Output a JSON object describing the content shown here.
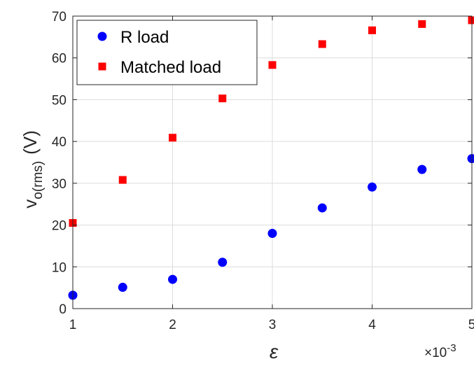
{
  "chart_data": {
    "type": "scatter",
    "xlabel": "ε",
    "ylabel_main": "v",
    "ylabel_sub": "o(rms)",
    "ylabel_unit": "(V)",
    "x_multiplier_base": "×10",
    "x_multiplier_exp": "-3",
    "xlim": [
      1,
      5
    ],
    "ylim": [
      0,
      70
    ],
    "xticks": [
      1,
      2,
      3,
      4,
      5
    ],
    "yticks": [
      0,
      10,
      20,
      30,
      40,
      50,
      60,
      70
    ],
    "grid": true,
    "legend_position": "top-left",
    "x": [
      1,
      1.5,
      2,
      2.5,
      3,
      3.5,
      4,
      4.5,
      5
    ],
    "series": [
      {
        "name": "R load",
        "marker": "circle",
        "color": "#0000ff",
        "values": [
          3.2,
          5.1,
          7.0,
          11.1,
          18.0,
          24.1,
          29.1,
          33.3,
          35.9
        ]
      },
      {
        "name": "Matched load",
        "marker": "square",
        "color": "#ff0000",
        "values": [
          20.5,
          30.8,
          40.9,
          50.3,
          58.3,
          63.3,
          66.6,
          68.1,
          69.0
        ]
      }
    ]
  }
}
